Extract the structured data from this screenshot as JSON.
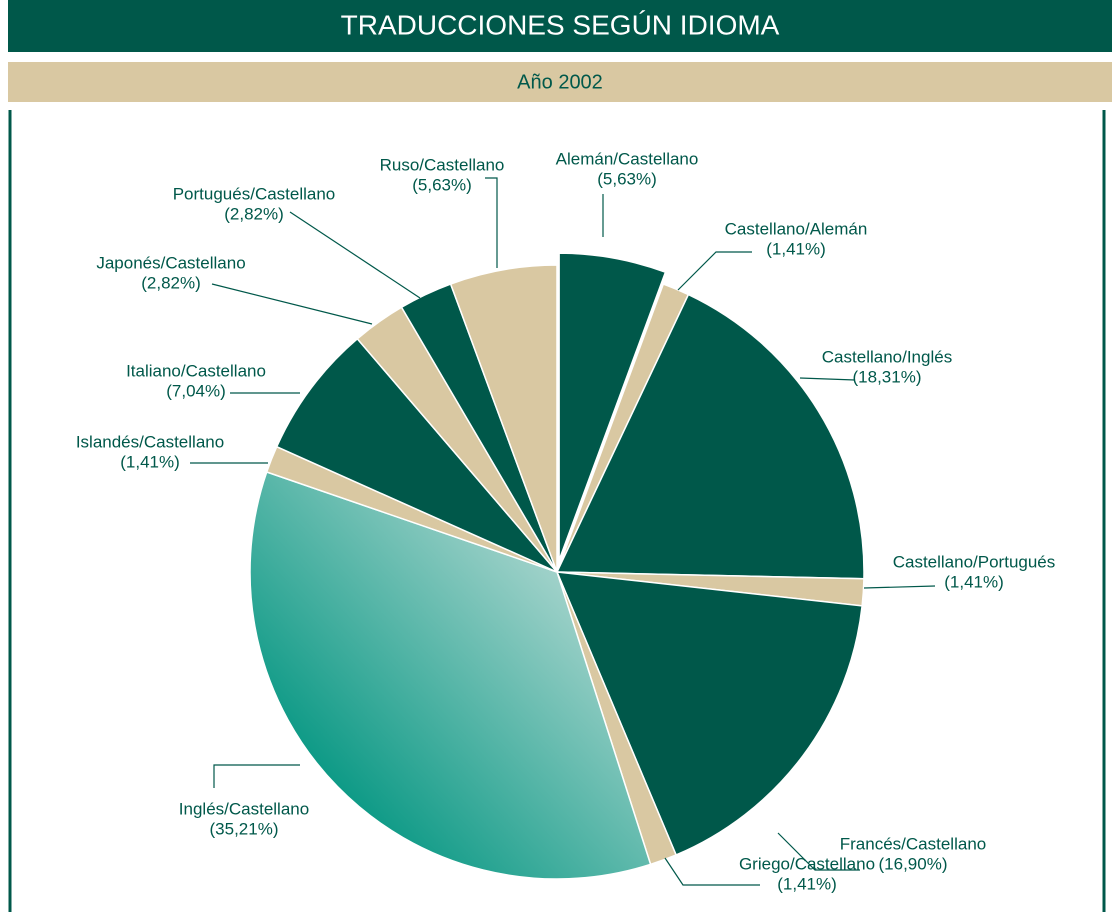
{
  "chart_data": {
    "type": "pie",
    "title": "TRADUCCIONES SEGÚN IDIOMA",
    "subtitle": "Año 2002",
    "categories": [
      "Alemán/Castellano",
      "Castellano/Alemán",
      "Castellano/Inglés",
      "Castellano/Portugués",
      "Francés/Castellano",
      "Griego/Castellano",
      "Inglés/Castellano",
      "Islandés/Castellano",
      "Italiano/Castellano",
      "Japonés/Castellano",
      "Portugués/Castellano",
      "Ruso/Castellano"
    ],
    "values": [
      5.63,
      1.41,
      18.31,
      1.41,
      16.9,
      1.41,
      35.21,
      1.41,
      7.04,
      2.82,
      2.82,
      5.63
    ],
    "value_labels": [
      "(5,63%)",
      "(1,41%)",
      "(18,31%)",
      "(1,41%)",
      "(16,90%)",
      "(1,41%)",
      "(35,21%)",
      "(1,41%)",
      "(7,04%)",
      "(2,82%)",
      "(2,82%)",
      "(5,63%)"
    ],
    "colors": [
      "#00584a",
      "#d9c8a2",
      "#00584a",
      "#d9c8a2",
      "#00584a",
      "#d9c8a2",
      "#009580",
      "#d9c8a2",
      "#00584a",
      "#d9c8a2",
      "#00584a",
      "#d9c8a2"
    ]
  }
}
